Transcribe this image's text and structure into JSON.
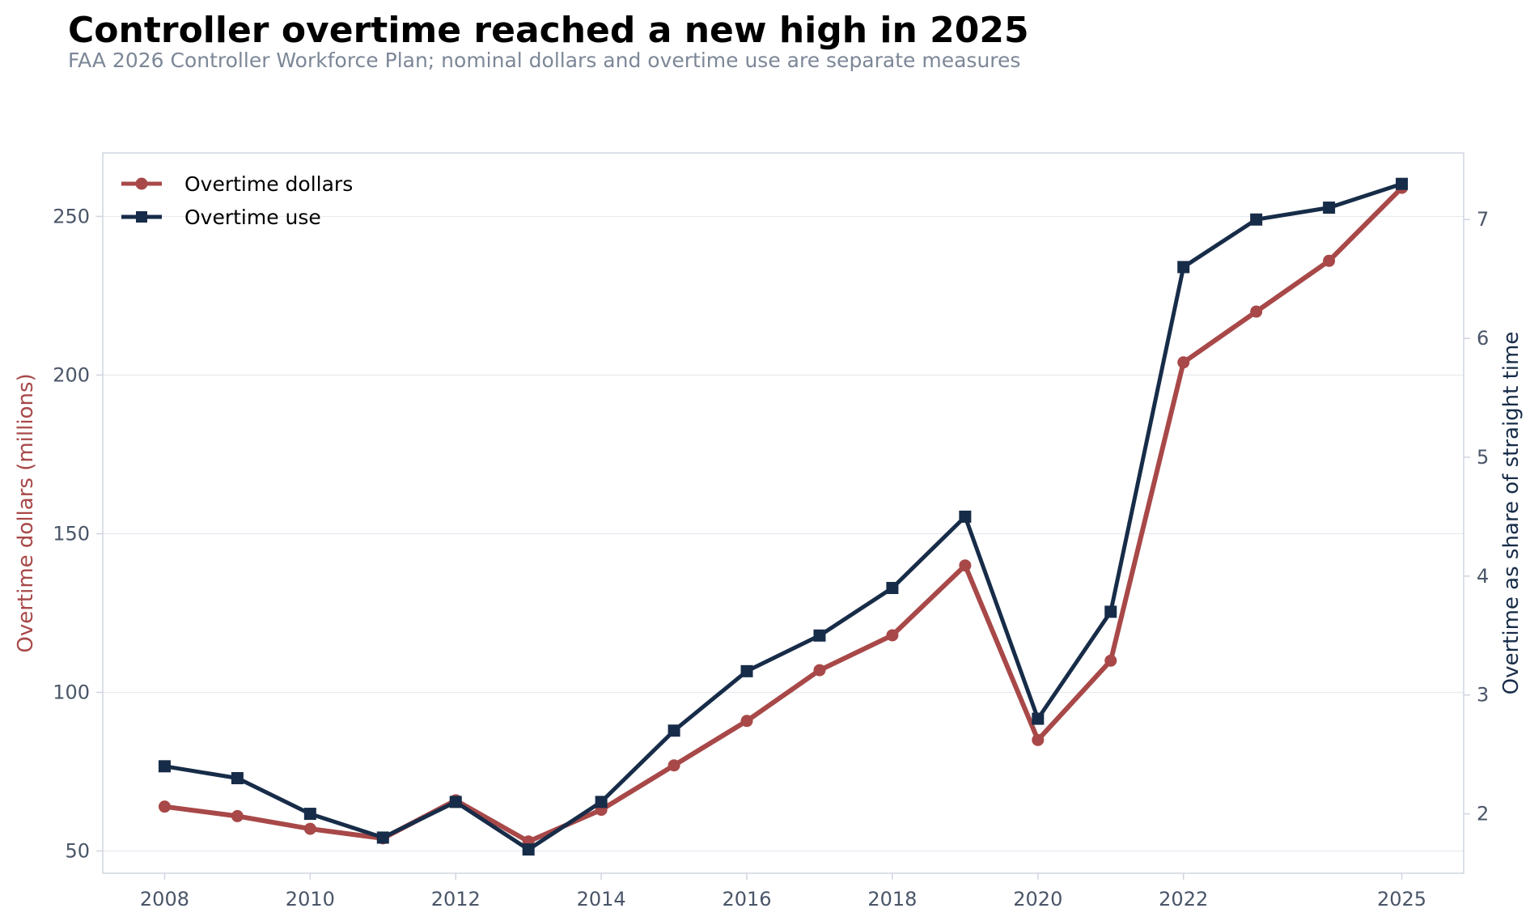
{
  "chart_data": {
    "type": "line",
    "title": "Controller overtime reached a new high in 2025",
    "subtitle": "FAA 2026 Controller Workforce Plan; nominal dollars and overtime use are separate measures",
    "xlabel": "",
    "ylabel_left": "Overtime dollars (millions)",
    "ylabel_right": "Overtime as share of straight time",
    "x": [
      2008,
      2009,
      2010,
      2011,
      2012,
      2013,
      2014,
      2015,
      2016,
      2017,
      2018,
      2019,
      2020,
      2021,
      2022,
      2023,
      2024,
      2025
    ],
    "x_ticks": [
      "2008",
      "2010",
      "2012",
      "2014",
      "2016",
      "2018",
      "2020",
      "2022",
      "2025"
    ],
    "xlim": [
      2007.15,
      2025.85
    ],
    "ylim_left": [
      43,
      270
    ],
    "y_ticks_left": [
      "50",
      "100",
      "150",
      "200",
      "250"
    ],
    "ylim_right": [
      1.5,
      7.56
    ],
    "y_ticks_right": [
      "2",
      "3",
      "4",
      "5",
      "6",
      "7"
    ],
    "grid": "horizontal",
    "legend_position": "top-left",
    "series": [
      {
        "name": "Overtime dollars",
        "axis": "left",
        "color": "#a84848",
        "marker": "circle",
        "values": [
          64,
          61,
          57,
          54,
          66,
          53,
          63,
          77,
          91,
          107,
          118,
          140,
          85,
          110,
          204,
          220,
          236,
          259
        ]
      },
      {
        "name": "Overtime use",
        "axis": "right",
        "color": "#172c48",
        "marker": "square",
        "values": [
          2.4,
          2.3,
          2.0,
          1.8,
          2.1,
          1.7,
          2.1,
          2.7,
          3.2,
          3.5,
          3.9,
          4.5,
          2.8,
          3.7,
          6.6,
          7.0,
          7.1,
          7.3
        ]
      }
    ]
  }
}
